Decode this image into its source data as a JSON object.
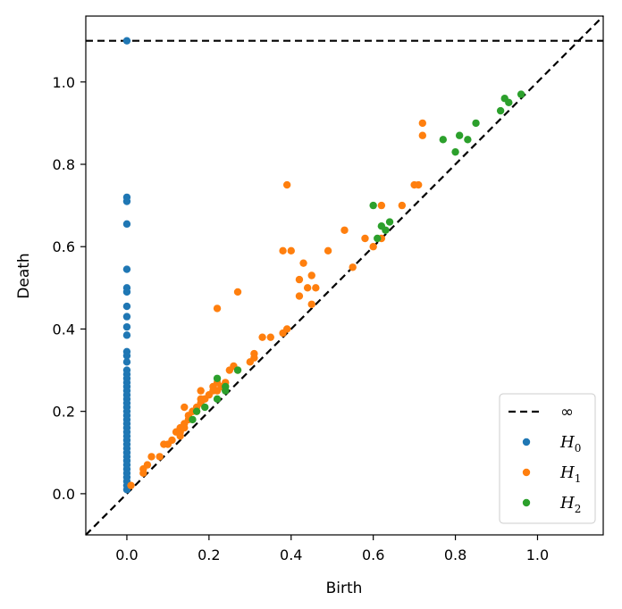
{
  "chart_data": {
    "type": "scatter",
    "title": "",
    "xlabel": "Birth",
    "ylabel": "Death",
    "xlim": [
      -0.1,
      1.16
    ],
    "ylim": [
      -0.1,
      1.16
    ],
    "xticks": [
      0.0,
      0.2,
      0.4,
      0.6,
      0.8,
      1.0
    ],
    "yticks": [
      0.0,
      0.2,
      0.4,
      0.6,
      0.8,
      1.0
    ],
    "xtick_labels": [
      "0.0",
      "0.2",
      "0.4",
      "0.6",
      "0.8",
      "1.0"
    ],
    "ytick_labels": [
      "0.0",
      "0.2",
      "0.4",
      "0.6",
      "0.8",
      "1.0"
    ],
    "infinity_level": 1.1,
    "grid": false,
    "legend_position": "bottom-right",
    "legend": [
      {
        "label": "∞",
        "sub": "",
        "kind": "line",
        "color": "#000000"
      },
      {
        "label": "H",
        "sub": "0",
        "kind": "marker",
        "color": "#1f77b4"
      },
      {
        "label": "H",
        "sub": "1",
        "kind": "marker",
        "color": "#ff7f0e"
      },
      {
        "label": "H",
        "sub": "2",
        "kind": "marker",
        "color": "#2ca02c"
      }
    ],
    "series": [
      {
        "name": "H0",
        "color": "#1f77b4",
        "points": [
          [
            0.0,
            1.1
          ],
          [
            0.0,
            0.72
          ],
          [
            0.0,
            0.71
          ],
          [
            0.0,
            0.655
          ],
          [
            0.0,
            0.545
          ],
          [
            0.0,
            0.5
          ],
          [
            0.0,
            0.49
          ],
          [
            0.0,
            0.455
          ],
          [
            0.0,
            0.43
          ],
          [
            0.0,
            0.405
          ],
          [
            0.0,
            0.385
          ],
          [
            0.0,
            0.345
          ],
          [
            0.0,
            0.335
          ],
          [
            0.0,
            0.32
          ],
          [
            0.0,
            0.3
          ],
          [
            0.0,
            0.29
          ],
          [
            0.0,
            0.28
          ],
          [
            0.0,
            0.27
          ],
          [
            0.0,
            0.26
          ],
          [
            0.0,
            0.25
          ],
          [
            0.0,
            0.24
          ],
          [
            0.0,
            0.23
          ],
          [
            0.0,
            0.22
          ],
          [
            0.0,
            0.21
          ],
          [
            0.0,
            0.2
          ],
          [
            0.0,
            0.19
          ],
          [
            0.0,
            0.18
          ],
          [
            0.0,
            0.17
          ],
          [
            0.0,
            0.16
          ],
          [
            0.0,
            0.15
          ],
          [
            0.0,
            0.14
          ],
          [
            0.0,
            0.13
          ],
          [
            0.0,
            0.12
          ],
          [
            0.0,
            0.11
          ],
          [
            0.0,
            0.1
          ],
          [
            0.0,
            0.09
          ],
          [
            0.0,
            0.08
          ],
          [
            0.0,
            0.07
          ],
          [
            0.0,
            0.06
          ],
          [
            0.0,
            0.05
          ],
          [
            0.0,
            0.04
          ],
          [
            0.0,
            0.03
          ],
          [
            0.0,
            0.02
          ],
          [
            0.0,
            0.01
          ]
        ]
      },
      {
        "name": "H1",
        "color": "#ff7f0e",
        "points": [
          [
            0.01,
            0.02
          ],
          [
            0.04,
            0.05
          ],
          [
            0.04,
            0.06
          ],
          [
            0.05,
            0.07
          ],
          [
            0.06,
            0.09
          ],
          [
            0.08,
            0.09
          ],
          [
            0.09,
            0.12
          ],
          [
            0.1,
            0.12
          ],
          [
            0.11,
            0.13
          ],
          [
            0.12,
            0.15
          ],
          [
            0.13,
            0.15
          ],
          [
            0.13,
            0.16
          ],
          [
            0.14,
            0.16
          ],
          [
            0.14,
            0.17
          ],
          [
            0.15,
            0.18
          ],
          [
            0.15,
            0.19
          ],
          [
            0.16,
            0.2
          ],
          [
            0.17,
            0.2
          ],
          [
            0.17,
            0.21
          ],
          [
            0.18,
            0.22
          ],
          [
            0.18,
            0.23
          ],
          [
            0.19,
            0.23
          ],
          [
            0.2,
            0.24
          ],
          [
            0.21,
            0.25
          ],
          [
            0.21,
            0.26
          ],
          [
            0.22,
            0.25
          ],
          [
            0.22,
            0.27
          ],
          [
            0.23,
            0.26
          ],
          [
            0.24,
            0.27
          ],
          [
            0.24,
            0.26
          ],
          [
            0.25,
            0.3
          ],
          [
            0.26,
            0.31
          ],
          [
            0.27,
            0.3
          ],
          [
            0.3,
            0.32
          ],
          [
            0.31,
            0.34
          ],
          [
            0.31,
            0.33
          ],
          [
            0.33,
            0.38
          ],
          [
            0.35,
            0.38
          ],
          [
            0.38,
            0.39
          ],
          [
            0.39,
            0.4
          ],
          [
            0.16,
            0.2
          ],
          [
            0.18,
            0.25
          ],
          [
            0.14,
            0.21
          ],
          [
            0.13,
            0.14
          ],
          [
            0.22,
            0.45
          ],
          [
            0.27,
            0.49
          ],
          [
            0.38,
            0.59
          ],
          [
            0.4,
            0.59
          ],
          [
            0.42,
            0.52
          ],
          [
            0.42,
            0.48
          ],
          [
            0.43,
            0.56
          ],
          [
            0.44,
            0.5
          ],
          [
            0.45,
            0.46
          ],
          [
            0.46,
            0.5
          ],
          [
            0.45,
            0.53
          ],
          [
            0.39,
            0.75
          ],
          [
            0.49,
            0.59
          ],
          [
            0.53,
            0.64
          ],
          [
            0.55,
            0.55
          ],
          [
            0.58,
            0.62
          ],
          [
            0.6,
            0.6
          ],
          [
            0.62,
            0.62
          ],
          [
            0.62,
            0.7
          ],
          [
            0.67,
            0.7
          ],
          [
            0.7,
            0.75
          ],
          [
            0.71,
            0.75
          ],
          [
            0.72,
            0.9
          ],
          [
            0.72,
            0.87
          ]
        ]
      },
      {
        "name": "H2",
        "color": "#2ca02c",
        "points": [
          [
            0.16,
            0.18
          ],
          [
            0.17,
            0.2
          ],
          [
            0.19,
            0.21
          ],
          [
            0.22,
            0.23
          ],
          [
            0.22,
            0.28
          ],
          [
            0.24,
            0.25
          ],
          [
            0.24,
            0.26
          ],
          [
            0.27,
            0.3
          ],
          [
            0.6,
            0.7
          ],
          [
            0.61,
            0.62
          ],
          [
            0.62,
            0.65
          ],
          [
            0.63,
            0.64
          ],
          [
            0.64,
            0.66
          ],
          [
            0.77,
            0.86
          ],
          [
            0.8,
            0.83
          ],
          [
            0.81,
            0.87
          ],
          [
            0.83,
            0.86
          ],
          [
            0.85,
            0.9
          ],
          [
            0.91,
            0.93
          ],
          [
            0.92,
            0.96
          ],
          [
            0.93,
            0.95
          ],
          [
            0.96,
            0.97
          ]
        ]
      }
    ]
  }
}
